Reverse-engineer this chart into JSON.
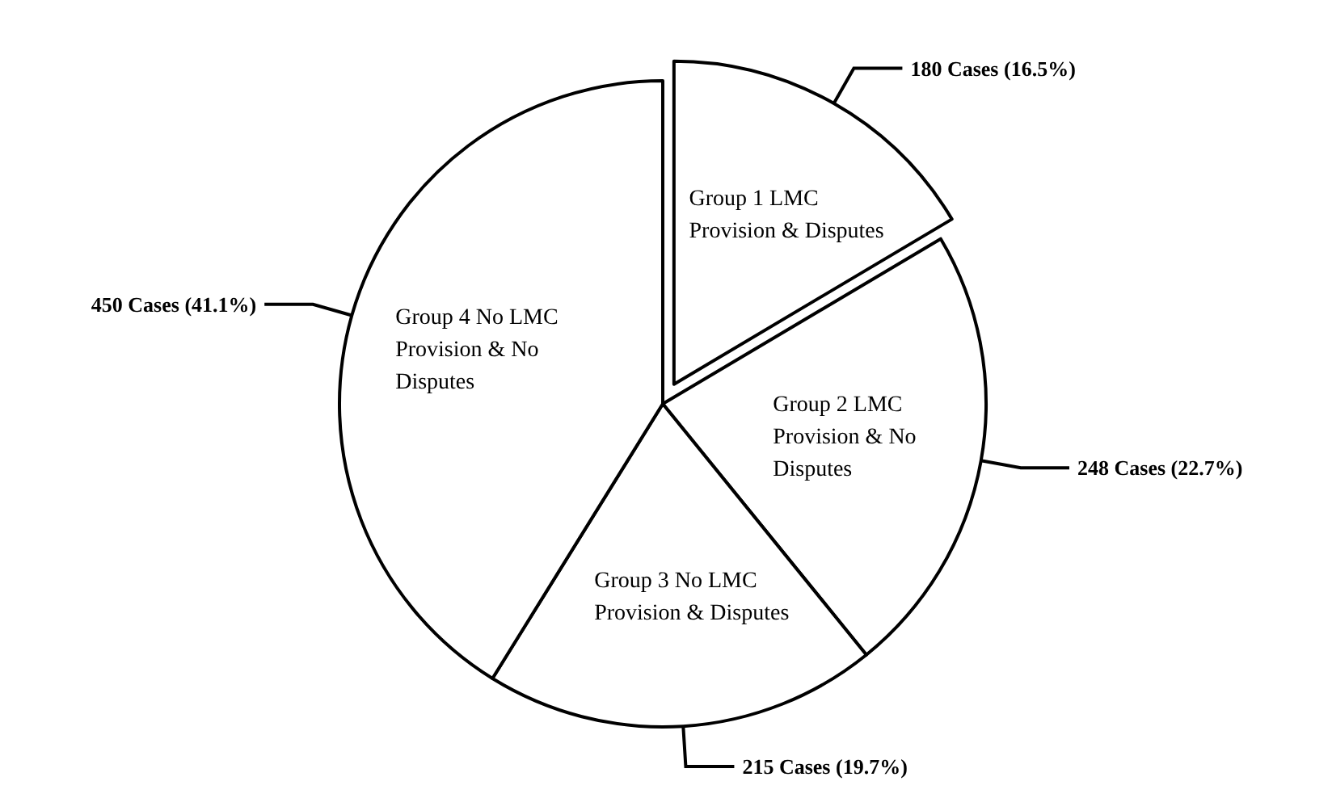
{
  "chart_data": {
    "type": "pie",
    "categories": [
      "Group 1 LMC Provision & Disputes",
      "Group 2 LMC Provision & No Disputes",
      "Group 3 No LMC Provision & Disputes",
      "Group 4 No LMC Provision & No Disputes"
    ],
    "values": [
      180,
      248,
      215,
      450
    ],
    "value_labels": [
      "180 Cases (16.5%)",
      "248 Cases (22.7%)",
      "215 Cases (19.7%)",
      "450 Cases (41.1%)"
    ],
    "colors": [
      "#ffffff",
      "#ffffff",
      "#ffffff",
      "#ffffff"
    ]
  }
}
